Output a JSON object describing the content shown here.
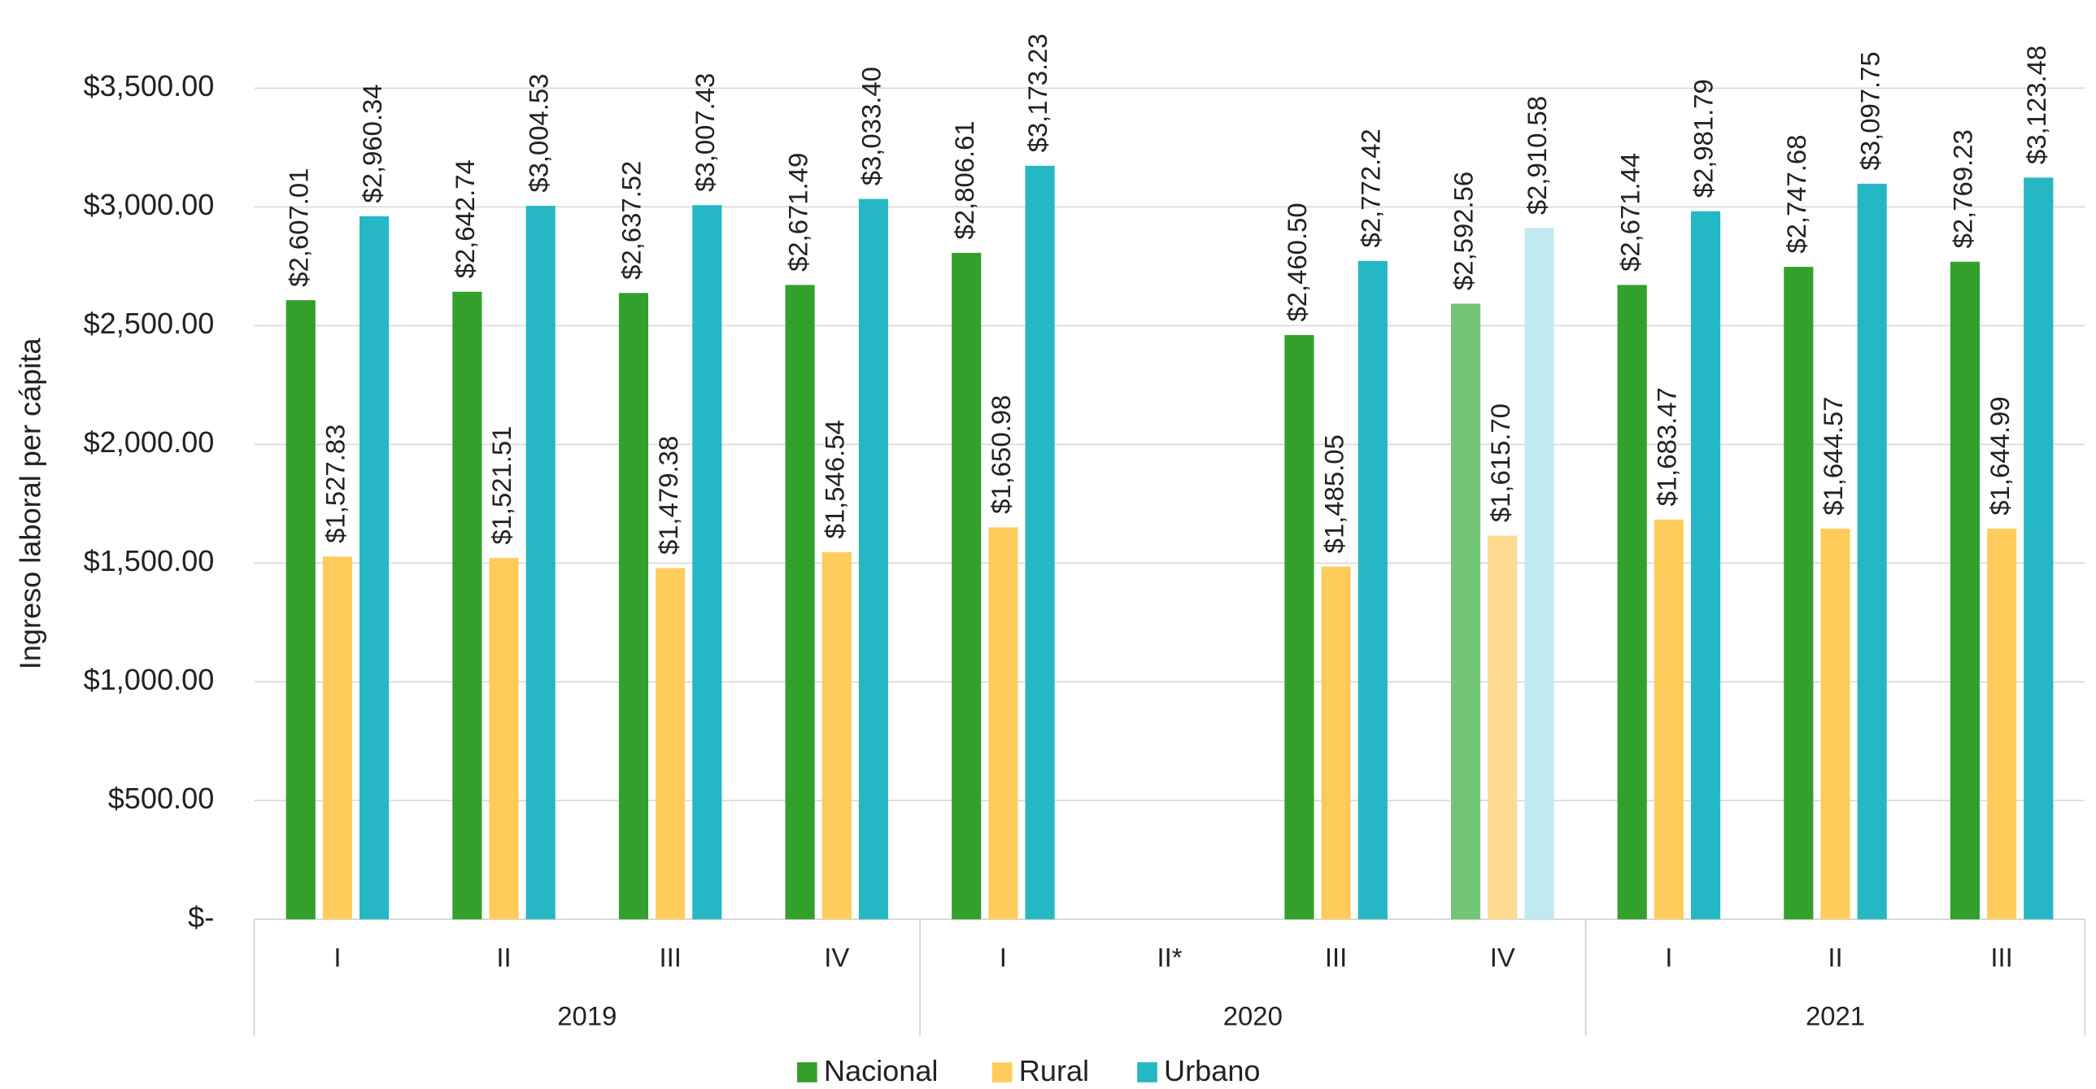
{
  "chart_data": {
    "type": "bar",
    "y_label": "Ingreso laboral per cápita",
    "categories": [
      "I",
      "II",
      "III",
      "IV",
      "I",
      "II*",
      "III",
      "IV",
      "I",
      "II",
      "III"
    ],
    "groups": [
      "2019",
      "2019",
      "2019",
      "2019",
      "2020",
      "2020",
      "2020",
      "2020",
      "2021",
      "2021",
      "2021"
    ],
    "series": [
      {
        "name": "Nacional",
        "color": "#33a02c",
        "colors": [
          "#33a02c",
          "#33a02c",
          "#33a02c",
          "#33a02c",
          "#33a02c",
          null,
          "#33a02c",
          "#74c476",
          "#33a02c",
          "#33a02c",
          "#33a02c"
        ],
        "values": [
          2607.01,
          2642.74,
          2637.52,
          2671.49,
          2806.61,
          null,
          2460.5,
          2592.56,
          2671.44,
          2747.68,
          2769.23
        ],
        "value_labels": [
          "$2,607.01",
          "$2,642.74",
          "$2,637.52",
          "$2,671.49",
          "$2,806.61",
          null,
          "$2,460.50",
          "$2,592.56",
          "$2,671.44",
          "$2,747.68",
          "$2,769.23"
        ]
      },
      {
        "name": "Rural",
        "color": "#ffcc5c",
        "colors": [
          "#ffcc5c",
          "#ffcc5c",
          "#ffcc5c",
          "#ffcc5c",
          "#ffcc5c",
          null,
          "#ffcc5c",
          "#fddc91",
          "#ffcc5c",
          "#ffcc5c",
          "#ffcc5c"
        ],
        "values": [
          1527.83,
          1521.51,
          1479.38,
          1546.54,
          1650.98,
          null,
          1485.05,
          1615.7,
          1683.47,
          1644.57,
          1644.99
        ],
        "value_labels": [
          "$1,527.83",
          "$1,521.51",
          "$1,479.38",
          "$1,546.54",
          "$1,650.98",
          null,
          "$1,485.05",
          "$1,615.70",
          "$1,683.47",
          "$1,644.57",
          "$1,644.99"
        ]
      },
      {
        "name": "Urbano",
        "color": "#25b7c3",
        "colors": [
          "#25b7c3",
          "#25b7c3",
          "#25b7c3",
          "#25b7c3",
          "#25b7c3",
          null,
          "#25b7c3",
          "#bfeaf0",
          "#25b7c3",
          "#25b7c3",
          "#25b7c3"
        ],
        "values": [
          2960.34,
          3004.53,
          3007.43,
          3033.4,
          3173.23,
          null,
          2772.42,
          2910.58,
          2981.79,
          3097.75,
          3123.48
        ],
        "value_labels": [
          "$2,960.34",
          "$3,004.53",
          "$3,007.43",
          "$3,033.40",
          "$3,173.23",
          null,
          "$2,772.42",
          "$2,910.58",
          "$2,981.79",
          "$3,097.75",
          "$3,123.48"
        ]
      }
    ],
    "ylim": [
      0,
      3500
    ],
    "yticks": [
      {
        "value": 0,
        "label": "$-"
      },
      {
        "value": 500,
        "label": "$500.00"
      },
      {
        "value": 1000,
        "label": "$1,000.00"
      },
      {
        "value": 1500,
        "label": "$1,500.00"
      },
      {
        "value": 2000,
        "label": "$2,000.00"
      },
      {
        "value": 2500,
        "label": "$2,500.00"
      },
      {
        "value": 3000,
        "label": "$3,000.00"
      },
      {
        "value": 3500,
        "label": "$3,500.00"
      }
    ],
    "grid": true,
    "legend": "bottom"
  }
}
